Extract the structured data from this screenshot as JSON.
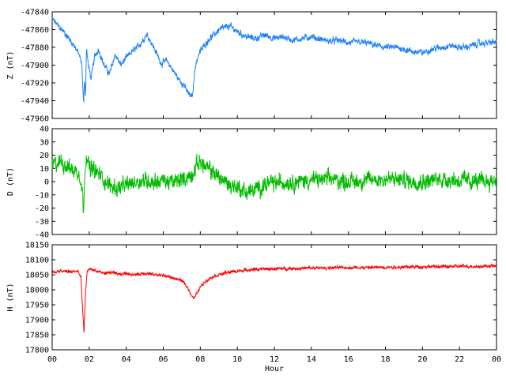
{
  "chart_data": [
    {
      "type": "line",
      "ylabel": "Z (nT)",
      "ylim": [
        -47960,
        -47840
      ],
      "yticks": [
        -47840,
        -47860,
        -47880,
        -47900,
        -47920,
        -47940,
        -47960
      ],
      "xlim": [
        0,
        24
      ],
      "color": "#1e82ff",
      "noise": 4,
      "series": [
        {
          "x": [
            0,
            0.3,
            0.6,
            0.9,
            1.2,
            1.45,
            1.6,
            1.7,
            1.75,
            1.8,
            1.85,
            1.95,
            2.1,
            2.3,
            2.5,
            2.8,
            3.1,
            3.4,
            3.7,
            4.0,
            4.3,
            4.6,
            4.9,
            5.1,
            5.3,
            5.6,
            5.9,
            6.2,
            6.5,
            6.8,
            7.1,
            7.3,
            7.5,
            7.6,
            7.7,
            7.9,
            8.2,
            8.5,
            8.8,
            9.0,
            9.3,
            9.6,
            10.0,
            10.5,
            11.0,
            11.5,
            12.0,
            12.5,
            13.0,
            13.5,
            14.0,
            14.5,
            15.0,
            15.5,
            16.0,
            16.5,
            17.0,
            17.5,
            18.0,
            18.5,
            19.0,
            19.5,
            20.0,
            20.5,
            21.0,
            21.5,
            22.0,
            22.5,
            23.0,
            23.5,
            24.0
          ],
          "y": [
            -47848,
            -47855,
            -47862,
            -47870,
            -47878,
            -47888,
            -47900,
            -47945,
            -47915,
            -47935,
            -47880,
            -47900,
            -47915,
            -47890,
            -47882,
            -47900,
            -47910,
            -47888,
            -47900,
            -47892,
            -47885,
            -47880,
            -47872,
            -47865,
            -47872,
            -47885,
            -47898,
            -47895,
            -47905,
            -47915,
            -47922,
            -47930,
            -47936,
            -47932,
            -47905,
            -47888,
            -47878,
            -47870,
            -47865,
            -47860,
            -47858,
            -47856,
            -47862,
            -47868,
            -47870,
            -47866,
            -47870,
            -47868,
            -47872,
            -47870,
            -47868,
            -47871,
            -47873,
            -47872,
            -47875,
            -47874,
            -47875,
            -47878,
            -47880,
            -47880,
            -47882,
            -47885,
            -47886,
            -47882,
            -47880,
            -47878,
            -47880,
            -47879,
            -47876,
            -47875,
            -47874
          ]
        }
      ]
    },
    {
      "type": "line",
      "ylabel": "D (nT)",
      "ylim": [
        -40,
        40
      ],
      "yticks": [
        40,
        30,
        20,
        10,
        0,
        -10,
        -20,
        -30,
        -40
      ],
      "xlim": [
        0,
        24
      ],
      "color": "#00bb00",
      "noise": 7,
      "series": [
        {
          "x": [
            0,
            0.5,
            1.0,
            1.5,
            1.65,
            1.7,
            1.75,
            1.85,
            2.0,
            2.3,
            2.6,
            3.0,
            3.5,
            4.0,
            4.5,
            5.0,
            5.5,
            6.0,
            6.5,
            7.0,
            7.5,
            7.8,
            8.0,
            8.3,
            8.6,
            9.0,
            9.5,
            10.0,
            10.5,
            11.0,
            11.5,
            12.0,
            13.0,
            14.0,
            15.0,
            16.0,
            17.0,
            18.0,
            19.0,
            20.0,
            21.0,
            22.0,
            23.0,
            24.0
          ],
          "y": [
            12,
            15,
            10,
            6,
            -10,
            -28,
            5,
            22,
            10,
            8,
            5,
            -2,
            -5,
            -3,
            0,
            1,
            0,
            1,
            -1,
            2,
            4,
            12,
            16,
            10,
            8,
            4,
            -2,
            -4,
            -8,
            -6,
            -2,
            -1,
            0,
            1,
            2,
            0,
            1,
            2,
            1,
            0,
            2,
            1,
            0,
            1
          ]
        }
      ]
    },
    {
      "type": "line",
      "ylabel": "H (nT)",
      "ylim": [
        17800,
        18150
      ],
      "yticks": [
        18150,
        18100,
        18050,
        18000,
        17950,
        17900,
        17850,
        17800
      ],
      "xlim": [
        0,
        24
      ],
      "xticks": [
        "00",
        "02",
        "04",
        "06",
        "08",
        "10",
        "12",
        "14",
        "16",
        "18",
        "20",
        "22",
        "00"
      ],
      "xlabel": "Hour",
      "color": "#ff0000",
      "noise": 6,
      "series": [
        {
          "x": [
            0,
            0.5,
            1.0,
            1.4,
            1.55,
            1.65,
            1.72,
            1.8,
            1.9,
            2.1,
            2.4,
            2.8,
            3.2,
            3.6,
            4.0,
            4.5,
            5.0,
            5.5,
            6.0,
            6.5,
            7.0,
            7.3,
            7.5,
            7.65,
            7.8,
            8.0,
            8.3,
            8.7,
            9.0,
            9.5,
            10.0,
            10.5,
            11.0,
            12.0,
            13.0,
            14.0,
            15.0,
            16.0,
            17.0,
            18.0,
            19.0,
            20.0,
            21.0,
            22.0,
            23.0,
            24.0
          ],
          "y": [
            18058,
            18062,
            18060,
            18062,
            18040,
            17930,
            17855,
            17990,
            18065,
            18070,
            18062,
            18055,
            18058,
            18050,
            18055,
            18050,
            18055,
            18050,
            18048,
            18040,
            18030,
            18010,
            17985,
            17972,
            17985,
            18010,
            18030,
            18045,
            18050,
            18058,
            18062,
            18066,
            18068,
            18070,
            18071,
            18072,
            18073,
            18074,
            18074,
            18075,
            18076,
            18077,
            18077,
            18078,
            18078,
            18080
          ]
        }
      ]
    }
  ]
}
